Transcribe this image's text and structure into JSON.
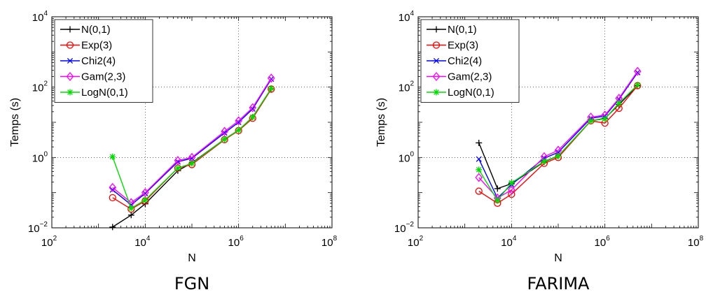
{
  "chart_data": [
    {
      "type": "line",
      "caption": "FGN",
      "xlabel": "N",
      "ylabel": "Temps (s)",
      "xscale": "log",
      "yscale": "log",
      "xlim": [
        100,
        100000000
      ],
      "ylim": [
        0.01,
        10000
      ],
      "x_ticks": [
        {
          "base": "10",
          "exp": "2"
        },
        {
          "base": "10",
          "exp": "4"
        },
        {
          "base": "10",
          "exp": "6"
        },
        {
          "base": "10",
          "exp": "8"
        }
      ],
      "y_ticks": [
        {
          "base": "10",
          "exp": "−2"
        },
        {
          "base": "10",
          "exp": "0"
        },
        {
          "base": "10",
          "exp": "2"
        },
        {
          "base": "10",
          "exp": "4"
        }
      ],
      "grid": "dotted",
      "legend_position": "top-left",
      "series": [
        {
          "name": "N(0,1)",
          "color": "#000000",
          "marker": "plus",
          "x": [
            2000,
            5000,
            10000,
            50000,
            100000,
            500000,
            1000000,
            2000000,
            5000000
          ],
          "y": [
            0.0105,
            0.023,
            0.048,
            0.42,
            0.7,
            3.3,
            6.0,
            14.0,
            90.0
          ]
        },
        {
          "name": "Exp(3)",
          "color": "#ff0000",
          "marker": "circle",
          "x": [
            2000,
            5000,
            10000,
            50000,
            100000,
            500000,
            1000000,
            2000000,
            5000000
          ],
          "y": [
            0.072,
            0.034,
            0.058,
            0.5,
            0.63,
            3.2,
            5.8,
            13.0,
            88.0
          ]
        },
        {
          "name": "Chi2(4)",
          "color": "#0000ff",
          "marker": "x",
          "x": [
            2000,
            5000,
            10000,
            50000,
            100000,
            500000,
            1000000,
            2000000,
            5000000
          ],
          "y": [
            0.12,
            0.045,
            0.095,
            0.75,
            0.95,
            5.0,
            10.0,
            24.0,
            170.0
          ]
        },
        {
          "name": "Gam(2,3)",
          "color": "#ff00ff",
          "marker": "diamond",
          "x": [
            2000,
            5000,
            10000,
            50000,
            100000,
            500000,
            1000000,
            2000000,
            5000000
          ],
          "y": [
            0.14,
            0.052,
            0.1,
            0.82,
            1.0,
            5.5,
            11.0,
            26.0,
            180.0
          ]
        },
        {
          "name": "LogN(0,1)",
          "color": "#00dd00",
          "marker": "star",
          "x": [
            2000,
            5000,
            10000,
            50000,
            100000,
            500000,
            1000000,
            2000000,
            5000000
          ],
          "y": [
            1.05,
            0.036,
            0.062,
            0.5,
            0.68,
            3.3,
            6.0,
            14.0,
            92.0
          ]
        }
      ]
    },
    {
      "type": "line",
      "caption": "FARIMA",
      "xlabel": "N",
      "ylabel": "Temps (s)",
      "xscale": "log",
      "yscale": "log",
      "xlim": [
        100,
        100000000
      ],
      "ylim": [
        0.01,
        10000
      ],
      "x_ticks": [
        {
          "base": "10",
          "exp": "2"
        },
        {
          "base": "10",
          "exp": "4"
        },
        {
          "base": "10",
          "exp": "6"
        },
        {
          "base": "10",
          "exp": "8"
        }
      ],
      "y_ticks": [
        {
          "base": "10",
          "exp": "−2"
        },
        {
          "base": "10",
          "exp": "0"
        },
        {
          "base": "10",
          "exp": "2"
        },
        {
          "base": "10",
          "exp": "4"
        }
      ],
      "grid": "dotted",
      "legend_position": "top-left",
      "series": [
        {
          "name": "N(0,1)",
          "color": "#000000",
          "marker": "plus",
          "x": [
            2000,
            5000,
            10000,
            50000,
            100000,
            500000,
            1000000,
            2000000,
            5000000
          ],
          "y": [
            2.6,
            0.13,
            0.18,
            0.75,
            1.1,
            11.0,
            13.0,
            32.0,
            110.0
          ]
        },
        {
          "name": "Exp(3)",
          "color": "#ff0000",
          "marker": "circle",
          "x": [
            2000,
            5000,
            10000,
            50000,
            100000,
            500000,
            1000000,
            2000000,
            5000000
          ],
          "y": [
            0.11,
            0.05,
            0.09,
            0.68,
            1.0,
            11.0,
            9.5,
            25.0,
            110.0
          ]
        },
        {
          "name": "Chi2(4)",
          "color": "#0000ff",
          "marker": "x",
          "x": [
            2000,
            5000,
            10000,
            50000,
            100000,
            500000,
            1000000,
            2000000,
            5000000
          ],
          "y": [
            0.9,
            0.07,
            0.17,
            0.95,
            1.4,
            13.0,
            15.0,
            45.0,
            260.0
          ]
        },
        {
          "name": "Gam(2,3)",
          "color": "#ff00ff",
          "marker": "diamond",
          "x": [
            2000,
            5000,
            10000,
            50000,
            100000,
            500000,
            1000000,
            2000000,
            5000000
          ],
          "y": [
            0.27,
            0.07,
            0.12,
            1.05,
            1.6,
            14.0,
            16.0,
            48.0,
            280.0
          ]
        },
        {
          "name": "LogN(0,1)",
          "color": "#00dd00",
          "marker": "star",
          "x": [
            2000,
            5000,
            10000,
            50000,
            100000,
            500000,
            1000000,
            2000000,
            5000000
          ],
          "y": [
            0.45,
            0.06,
            0.19,
            0.78,
            1.1,
            11.0,
            12.5,
            35.0,
            115.0
          ]
        }
      ]
    }
  ]
}
